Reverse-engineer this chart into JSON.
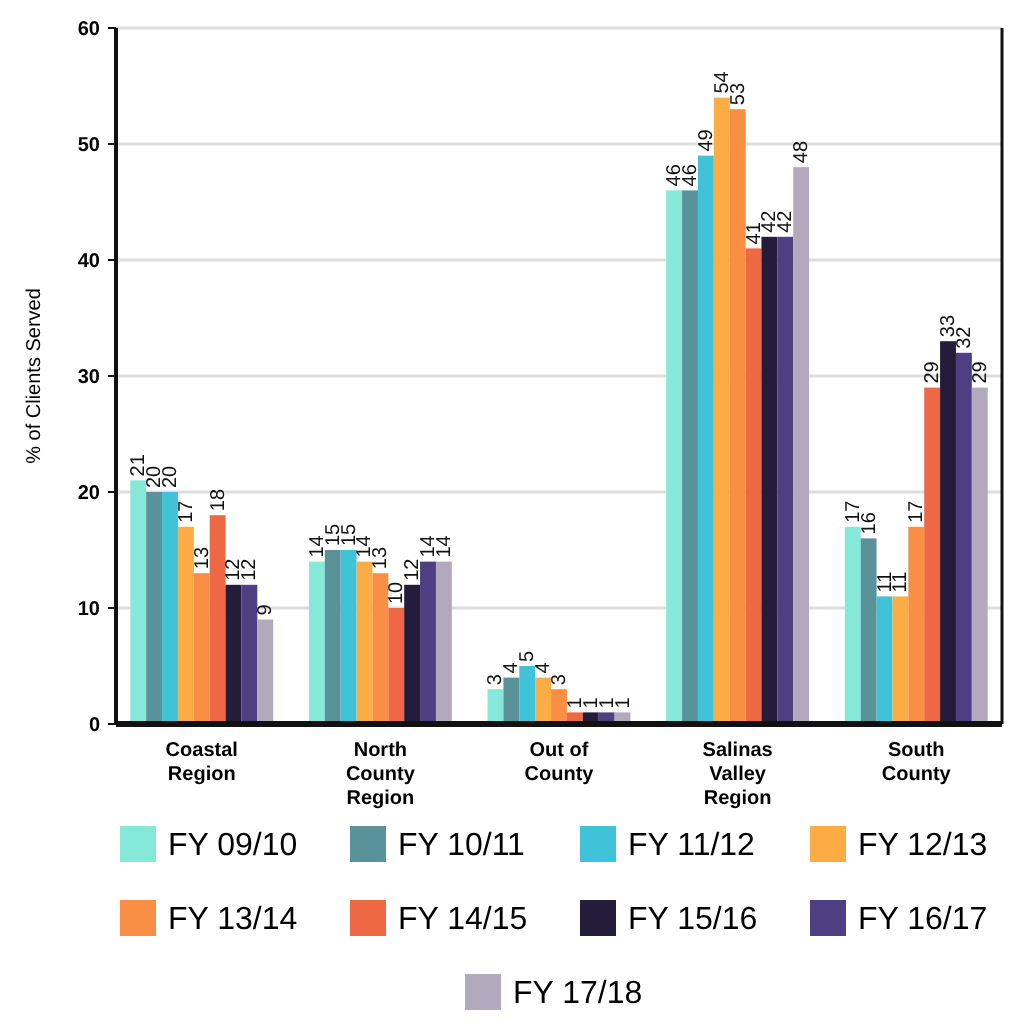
{
  "chart_data": {
    "type": "bar",
    "ylabel": "% of Clients Served",
    "categories": [
      "Coastal\nRegion",
      "North\nCounty\nRegion",
      "Out of\nCounty",
      "Salinas\nValley\nRegion",
      "South\nCounty"
    ],
    "series": [
      {
        "name": "FY 09/10",
        "color": "#86e8d8",
        "values": [
          21,
          14,
          3,
          46,
          17
        ]
      },
      {
        "name": "FY 10/11",
        "color": "#5a9299",
        "values": [
          20,
          15,
          4,
          46,
          16
        ]
      },
      {
        "name": "FY 11/12",
        "color": "#40c2d8",
        "values": [
          20,
          15,
          5,
          49,
          11
        ]
      },
      {
        "name": "FY 12/13",
        "color": "#fbac44",
        "values": [
          17,
          14,
          4,
          54,
          11
        ]
      },
      {
        "name": "FY 13/14",
        "color": "#f88f45",
        "values": [
          13,
          13,
          3,
          53,
          17
        ]
      },
      {
        "name": "FY 14/15",
        "color": "#ee6845",
        "values": [
          18,
          10,
          1,
          41,
          29
        ]
      },
      {
        "name": "FY 15/16",
        "color": "#231c3a",
        "values": [
          12,
          12,
          1,
          42,
          33
        ]
      },
      {
        "name": "FY 16/17",
        "color": "#4d3f82",
        "values": [
          12,
          14,
          1,
          42,
          32
        ]
      },
      {
        "name": "FY 17/18",
        "color": "#b2a9bc",
        "values": [
          9,
          14,
          1,
          48,
          29
        ]
      }
    ],
    "ylim": [
      0,
      60
    ],
    "yticks": [
      0,
      10,
      20,
      30,
      40,
      50,
      60
    ],
    "grid": "y",
    "legend": "bottom",
    "data_labels": true
  }
}
